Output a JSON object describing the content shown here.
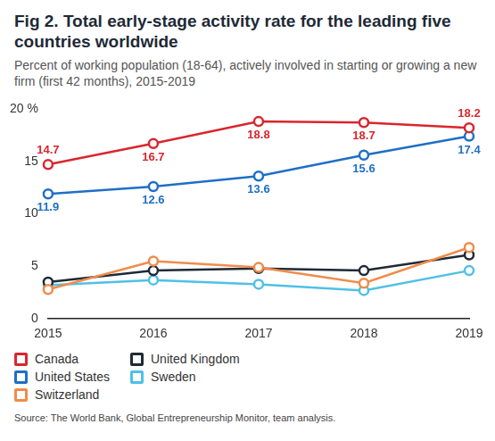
{
  "chart_data": {
    "type": "line",
    "title": "Fig 2. Total early-stage activity rate for the leading five countries worldwide",
    "subtitle": "Percent of working population (18-64), actively involved in starting or growing a new firm (first 42 months), 2015-2019",
    "source": "Source: The World Bank, Global Entrepreneurship Monitor, team analysis.",
    "categories": [
      "2015",
      "2016",
      "2017",
      "2018",
      "2019"
    ],
    "series": [
      {
        "name": "Canada",
        "color": "#d9262e",
        "values": [
          14.7,
          16.7,
          18.8,
          18.7,
          18.2
        ],
        "data_labels": true
      },
      {
        "name": "United States",
        "color": "#1f6fc5",
        "values": [
          11.9,
          12.6,
          13.6,
          15.6,
          17.4
        ],
        "data_labels": true
      },
      {
        "name": "Switzerland",
        "color": "#f08c4a",
        "values": [
          2.8,
          5.5,
          4.9,
          3.4,
          6.8
        ]
      },
      {
        "name": "United Kingdom",
        "color": "#1e2a36",
        "values": [
          3.5,
          4.6,
          4.8,
          4.6,
          6.1
        ]
      },
      {
        "name": "Sweden",
        "color": "#4fc0e6",
        "values": [
          3.2,
          3.7,
          3.3,
          2.7,
          4.6
        ]
      }
    ],
    "ylim": [
      0,
      20
    ],
    "yticks": [
      0,
      5,
      10,
      15,
      {
        "value": 20,
        "label": "20 %"
      }
    ],
    "grid": false,
    "marker": "circle",
    "legend": "bottom-left"
  }
}
